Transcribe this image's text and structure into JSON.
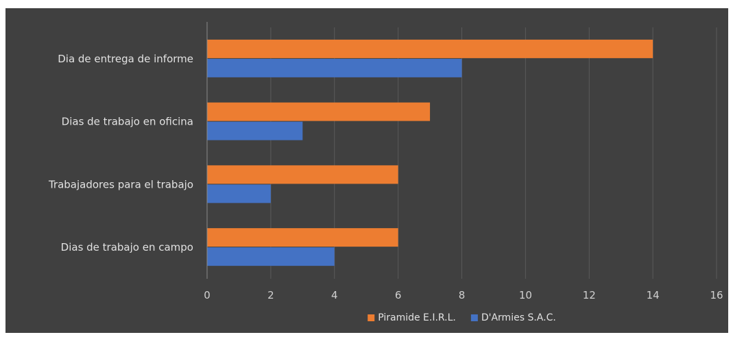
{
  "chart_data": {
    "type": "bar",
    "orientation": "horizontal",
    "title": "",
    "xlabel": "",
    "ylabel": "",
    "categories": [
      "Dia de entrega de informe",
      "Dias de trabajo en oficina",
      "Trabajadores para el trabajo",
      "Dias de trabajo en campo"
    ],
    "series": [
      {
        "name": "Piramide E.I.R.L.",
        "color": "#ED7D31",
        "values": [
          14,
          7,
          6,
          6
        ]
      },
      {
        "name": "D'Armies S.A.C.",
        "color": "#4472C4",
        "values": [
          8,
          3,
          2,
          4
        ]
      }
    ],
    "xlim": [
      0,
      16
    ],
    "xticks": [
      "0",
      "2",
      "4",
      "6",
      "8",
      "10",
      "12",
      "14",
      "16"
    ],
    "grid": "vertical",
    "legend_position": "bottom",
    "colors": {
      "background": "#404040",
      "gridline": "#5a5a5a",
      "axis": "#8a8a8a",
      "text": "#e2e2e2"
    }
  }
}
